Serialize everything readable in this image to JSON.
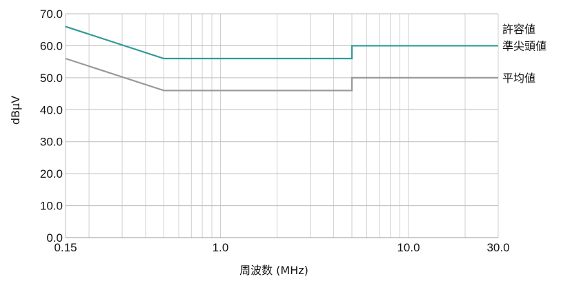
{
  "chart_data": {
    "type": "line",
    "x_scale": "log",
    "xlim": [
      0.15,
      30.0
    ],
    "ylim": [
      0.0,
      70.0
    ],
    "grid": true,
    "xlabel": "周波数 (MHz)",
    "ylabel": "dBμV",
    "y_ticks": [
      "0.0",
      "10.0",
      "20.0",
      "30.0",
      "40.0",
      "50.0",
      "60.0",
      "70.0"
    ],
    "x_tick_labels": [
      {
        "value": 0.15,
        "label": "0.15"
      },
      {
        "value": 1.0,
        "label": "1.0"
      },
      {
        "value": 10.0,
        "label": "10.0"
      },
      {
        "value": 30.0,
        "label": "30.0"
      }
    ],
    "legend_header": "許容値",
    "series": [
      {
        "name": "準尖頭値",
        "color": "#2e9a9a",
        "points": [
          [
            0.15,
            66
          ],
          [
            0.5,
            56
          ],
          [
            5.0,
            56
          ],
          [
            5.0,
            60
          ],
          [
            30.0,
            60
          ]
        ]
      },
      {
        "name": "平均値",
        "color": "#999999",
        "points": [
          [
            0.15,
            56
          ],
          [
            0.5,
            46
          ],
          [
            5.0,
            46
          ],
          [
            5.0,
            50
          ],
          [
            30.0,
            50
          ]
        ]
      }
    ]
  }
}
